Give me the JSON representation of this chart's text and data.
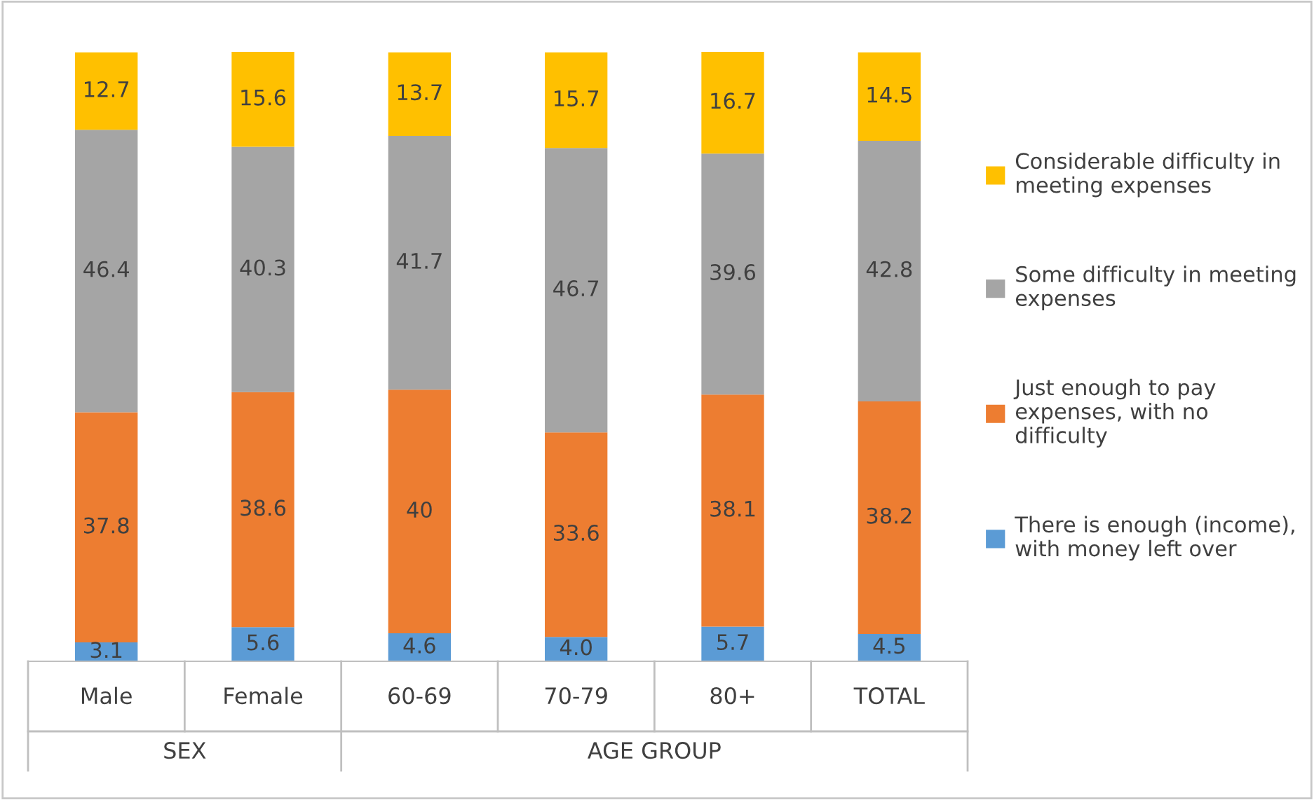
{
  "chart_data": {
    "type": "bar",
    "stacked": true,
    "data_labels": true,
    "legend": "right",
    "categories": [
      "Male",
      "Female",
      "60-69",
      "70-79",
      "80+",
      "TOTAL"
    ],
    "series": [
      {
        "name": "There is enough (income), with money left over",
        "color": "#5b9bd5",
        "values": [
          3.1,
          5.6,
          4.6,
          4.0,
          5.7,
          4.5
        ],
        "value_labels": [
          "3.1",
          "5.6",
          "4.6",
          "4.0",
          "5.7",
          "4.5"
        ]
      },
      {
        "name": "Just enough to pay expenses, with no difficulty",
        "color": "#ed7d31",
        "values": [
          37.8,
          38.6,
          40,
          33.6,
          38.1,
          38.2
        ]
      },
      {
        "name": "Some difficulty in meeting expenses",
        "color": "#a5a5a5",
        "values": [
          46.4,
          40.3,
          41.7,
          46.7,
          39.6,
          42.8
        ]
      },
      {
        "name": "Considerable difficulty in meeting expenses",
        "color": "#ffc000",
        "values": [
          12.7,
          15.6,
          13.7,
          15.7,
          16.7,
          14.5
        ]
      }
    ],
    "annotations": [
      "SEX",
      "AGE GROUP"
    ]
  }
}
